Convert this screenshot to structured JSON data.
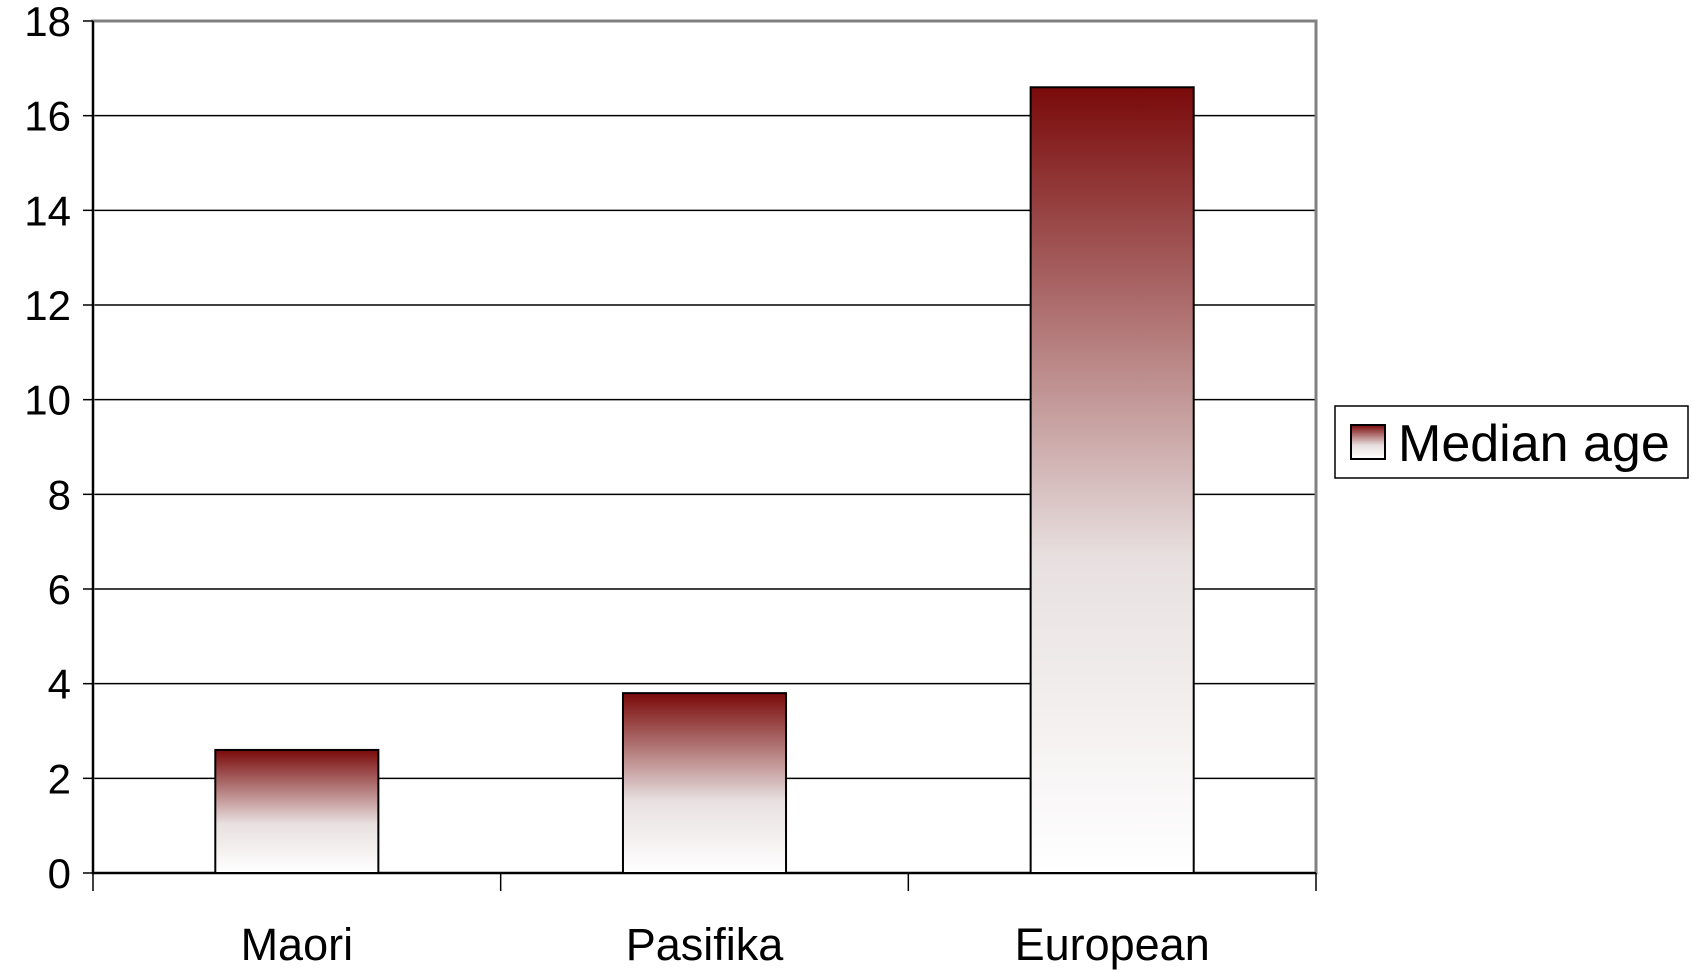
{
  "chart_data": {
    "type": "bar",
    "categories": [
      "Maori",
      "Pasifika",
      "European"
    ],
    "series": [
      {
        "name": "Median age",
        "values": [
          2.6,
          3.8,
          16.6
        ]
      }
    ],
    "ylim": [
      0,
      18
    ],
    "yticks": [
      "0",
      "2",
      "4",
      "6",
      "8",
      "10",
      "12",
      "14",
      "16",
      "18"
    ],
    "grid": true,
    "legend": "right",
    "colors": {
      "bar_top": "#7a0a0a",
      "bar_bottom": "#ffffff",
      "grid": "#000000",
      "frame": "#808080"
    }
  }
}
